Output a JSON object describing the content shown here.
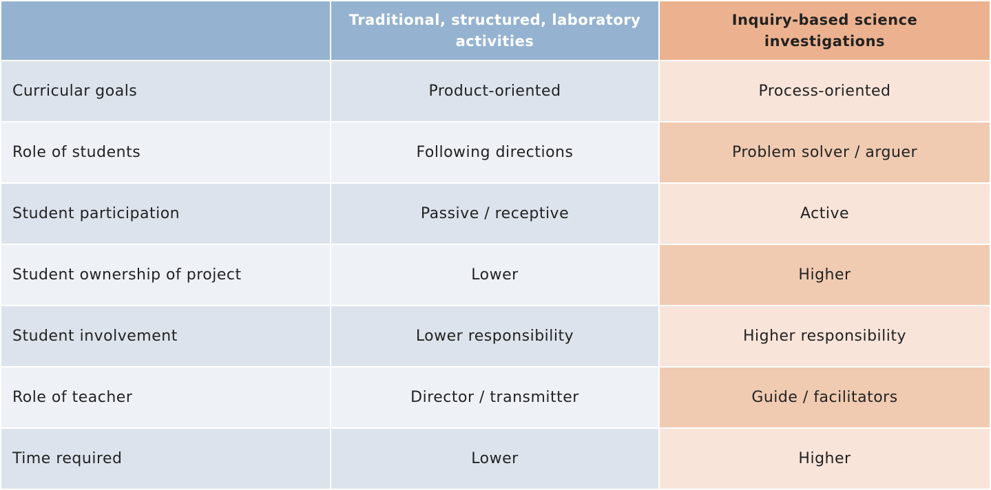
{
  "table": {
    "columns": [
      "Traditional, structured, laboratory activities",
      "Inquiry-based science investigations"
    ],
    "rows": [
      [
        "Curricular goals",
        "Product-oriented",
        "Process-oriented"
      ],
      [
        "Role of students",
        "Following directions",
        "Problem solver / arguer"
      ],
      [
        "Student participation",
        "Passive / receptive",
        "Active"
      ],
      [
        "Student ownership of project",
        "Lower",
        "Higher"
      ],
      [
        "Student involvement",
        "Lower responsibility",
        "Higher responsibility"
      ],
      [
        "Role of teacher",
        "Director / transmitter",
        "Guide / facilitators"
      ],
      [
        "Time required",
        "Lower",
        "Higher"
      ]
    ]
  }
}
